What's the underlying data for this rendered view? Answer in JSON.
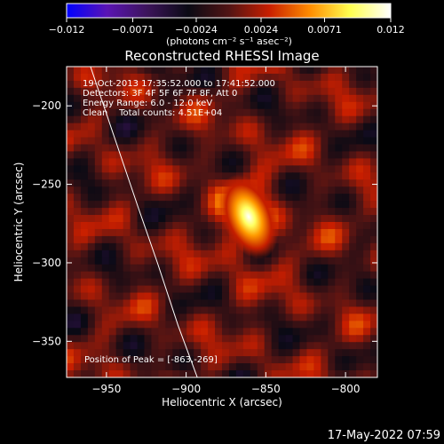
{
  "chart_data": {
    "type": "heatmap",
    "title": "Reconstructed RHESSI Image",
    "xlabel": "Heliocentric X (arcsec)",
    "ylabel": "Heliocentric Y (arcsec)",
    "xlim": [
      -975,
      -780
    ],
    "ylim": [
      -373,
      -175
    ],
    "xticks": [
      -950,
      -900,
      -850,
      -800
    ],
    "xtick_labels": [
      "−950",
      "−900",
      "−850",
      "−800"
    ],
    "yticks": [
      -200,
      -250,
      -300,
      -350
    ],
    "ytick_labels": [
      "−200",
      "−250",
      "−300",
      "−350"
    ],
    "colorbar": {
      "range": [
        -0.012,
        0.012
      ],
      "ticks": [
        -0.012,
        -0.0071,
        -0.0024,
        0.0024,
        0.0071,
        0.012
      ],
      "tick_labels": [
        "−0.012",
        "−0.0071",
        "−0.0024",
        "0.0024",
        "0.0071",
        "0.012"
      ],
      "label": "(photons cm⁻² s⁻¹ asec⁻²)",
      "colors": [
        "#0000ff",
        "#5a14b4",
        "#3c145a",
        "#0a0a14",
        "#501414",
        "#c81e00",
        "#ff8c00",
        "#ffff50",
        "#ffffff"
      ]
    },
    "peak": {
      "x": -863,
      "y": -269,
      "value": 0.012
    },
    "limb_curve": [
      [
        -960,
        -175
      ],
      [
        -945,
        -220
      ],
      [
        -930,
        -265
      ],
      [
        -918,
        -300
      ],
      [
        -905,
        -340
      ],
      [
        -893,
        -373
      ]
    ],
    "annotations": {
      "time_range": "19-Oct-2013 17:35:52.000 to 17:41:52.000",
      "detectors": "Detectors: 3F 4F 5F 6F 7F 8F, Att 0",
      "energy": "Energy Range: 6.0 - 12.0 keV",
      "method": "Clean    Total counts: 4.51E+04",
      "peak_label": "Position of Peak = [-863,-269]"
    }
  },
  "footer": {
    "timestamp": "17-May-2022 07:59"
  }
}
